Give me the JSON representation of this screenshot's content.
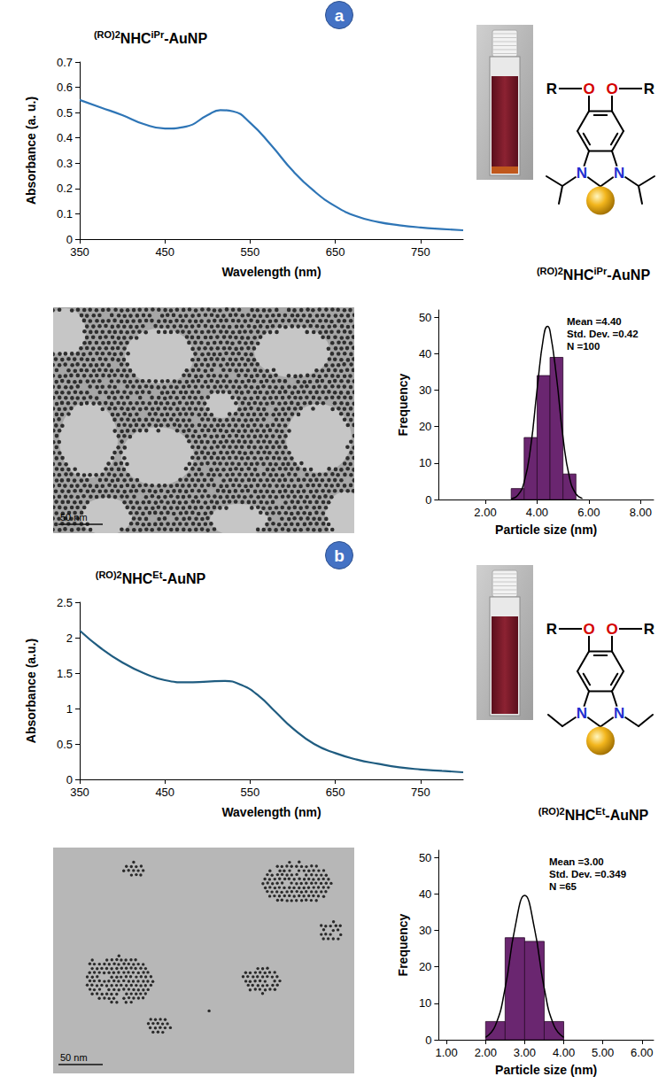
{
  "chart_data": [
    {
      "type": "line",
      "xlabel": "Wavelength (nm)",
      "ylabel": "Absorbance (a. u.)",
      "x": [
        350,
        375,
        400,
        425,
        450,
        475,
        500,
        515,
        530,
        550,
        575,
        600,
        625,
        650,
        675,
        700,
        725,
        750,
        775,
        800
      ],
      "values": [
        0.55,
        0.52,
        0.49,
        0.455,
        0.437,
        0.445,
        0.49,
        0.51,
        0.505,
        0.46,
        0.37,
        0.27,
        0.19,
        0.13,
        0.09,
        0.068,
        0.055,
        0.046,
        0.04,
        0.035
      ],
      "color": "#2e75b6",
      "xlim": [
        350,
        800
      ],
      "xticks": [
        350,
        450,
        550,
        650,
        750
      ],
      "ylim": [
        0,
        0.7
      ],
      "yticks": [
        0,
        0.1,
        0.2,
        0.3,
        0.4,
        0.5,
        0.6,
        0.7
      ],
      "grid": false
    },
    {
      "type": "histogram",
      "xlabel": "Particle size (nm)",
      "ylabel": "Frequency",
      "bins": [
        3.0,
        3.5,
        4.0,
        4.5,
        5.0,
        5.5
      ],
      "counts": [
        3,
        17,
        34,
        39,
        7
      ],
      "color": "#6a2670",
      "xlim": [
        0.2,
        8.5
      ],
      "xticks": [
        {
          "value": 2,
          "label": "2.00"
        },
        {
          "value": 4,
          "label": "4.00"
        },
        {
          "value": 6,
          "label": "6.00"
        },
        {
          "value": 8,
          "label": "8.00"
        }
      ],
      "ylim": [
        0,
        52
      ],
      "yticks": [
        0,
        10,
        20,
        30,
        40,
        50
      ],
      "grid": false,
      "annotations": [
        "Mean =4.40",
        "Std. Dev. =0.42",
        "N =100"
      ],
      "fit": {
        "color": "#000000",
        "x": [
          3.0,
          3.25,
          3.5,
          3.75,
          4.0,
          4.25,
          4.4,
          4.5,
          4.75,
          5.0,
          5.25,
          5.5,
          5.75
        ],
        "values": [
          0.18,
          1.12,
          4.78,
          14.3,
          30.2,
          44.6,
          47.5,
          46.2,
          33.6,
          17.1,
          6.1,
          1.54,
          0.27
        ]
      }
    },
    {
      "type": "line",
      "xlabel": "Wavelength (nm)",
      "ylabel": "Absorbance (a.u.)",
      "x": [
        350,
        375,
        400,
        425,
        450,
        475,
        500,
        520,
        540,
        560,
        580,
        600,
        625,
        650,
        675,
        700,
        725,
        750,
        775,
        800
      ],
      "values": [
        2.1,
        1.85,
        1.65,
        1.5,
        1.4,
        1.37,
        1.38,
        1.39,
        1.33,
        1.18,
        0.95,
        0.72,
        0.5,
        0.37,
        0.28,
        0.22,
        0.17,
        0.14,
        0.12,
        0.1
      ],
      "color": "#1f5c80",
      "xlim": [
        350,
        800
      ],
      "xticks": [
        350,
        450,
        550,
        650,
        750
      ],
      "ylim": [
        0,
        2.5
      ],
      "yticks": [
        0,
        0.5,
        1,
        1.5,
        2,
        2.5
      ],
      "grid": false
    },
    {
      "type": "histogram",
      "xlabel": "Particle size (nm)",
      "ylabel": "Frequency",
      "bins": [
        2.0,
        2.5,
        3.0,
        3.5,
        4.0
      ],
      "counts": [
        5,
        28,
        27,
        5
      ],
      "color": "#6a2670",
      "xlim": [
        0.8,
        6.3
      ],
      "xticks": [
        {
          "value": 1,
          "label": "1.00"
        },
        {
          "value": 2,
          "label": "2.00"
        },
        {
          "value": 3,
          "label": "3.00"
        },
        {
          "value": 4,
          "label": "4.00"
        },
        {
          "value": 5,
          "label": "5.00"
        },
        {
          "value": 6,
          "label": "6.00"
        }
      ],
      "ylim": [
        0,
        52
      ],
      "yticks": [
        0,
        10,
        20,
        30,
        40,
        50
      ],
      "grid": false,
      "annotations": [
        "Mean =3.00",
        "Std. Dev. =0.349",
        "N =65"
      ],
      "fit": {
        "color": "#000000",
        "x": [
          2.0,
          2.25,
          2.5,
          2.75,
          3.0,
          3.25,
          3.5,
          3.75,
          4.0
        ],
        "values": [
          0.65,
          3.9,
          14.2,
          30.6,
          39.6,
          30.6,
          14.2,
          3.9,
          0.65
        ]
      }
    }
  ],
  "panels": [
    {
      "letter": "a",
      "title_parts": [
        {
          "text": "(RO)2",
          "sup": true
        },
        {
          "text": "NHC"
        },
        {
          "text": "iPr",
          "sup": true
        },
        {
          "text": "-AuNP"
        }
      ],
      "structure": {
        "r": "R",
        "o": "O",
        "n": "N",
        "branched": true
      },
      "tem": {
        "scale_bar": "50 nm"
      }
    },
    {
      "letter": "b",
      "title_parts": [
        {
          "text": "(RO)2",
          "sup": true
        },
        {
          "text": "NHC"
        },
        {
          "text": "Et",
          "sup": true
        },
        {
          "text": "-AuNP"
        }
      ],
      "structure": {
        "r": "R",
        "o": "O",
        "n": "N",
        "branched": false
      },
      "tem": {
        "scale_bar": "50 nm"
      }
    }
  ]
}
